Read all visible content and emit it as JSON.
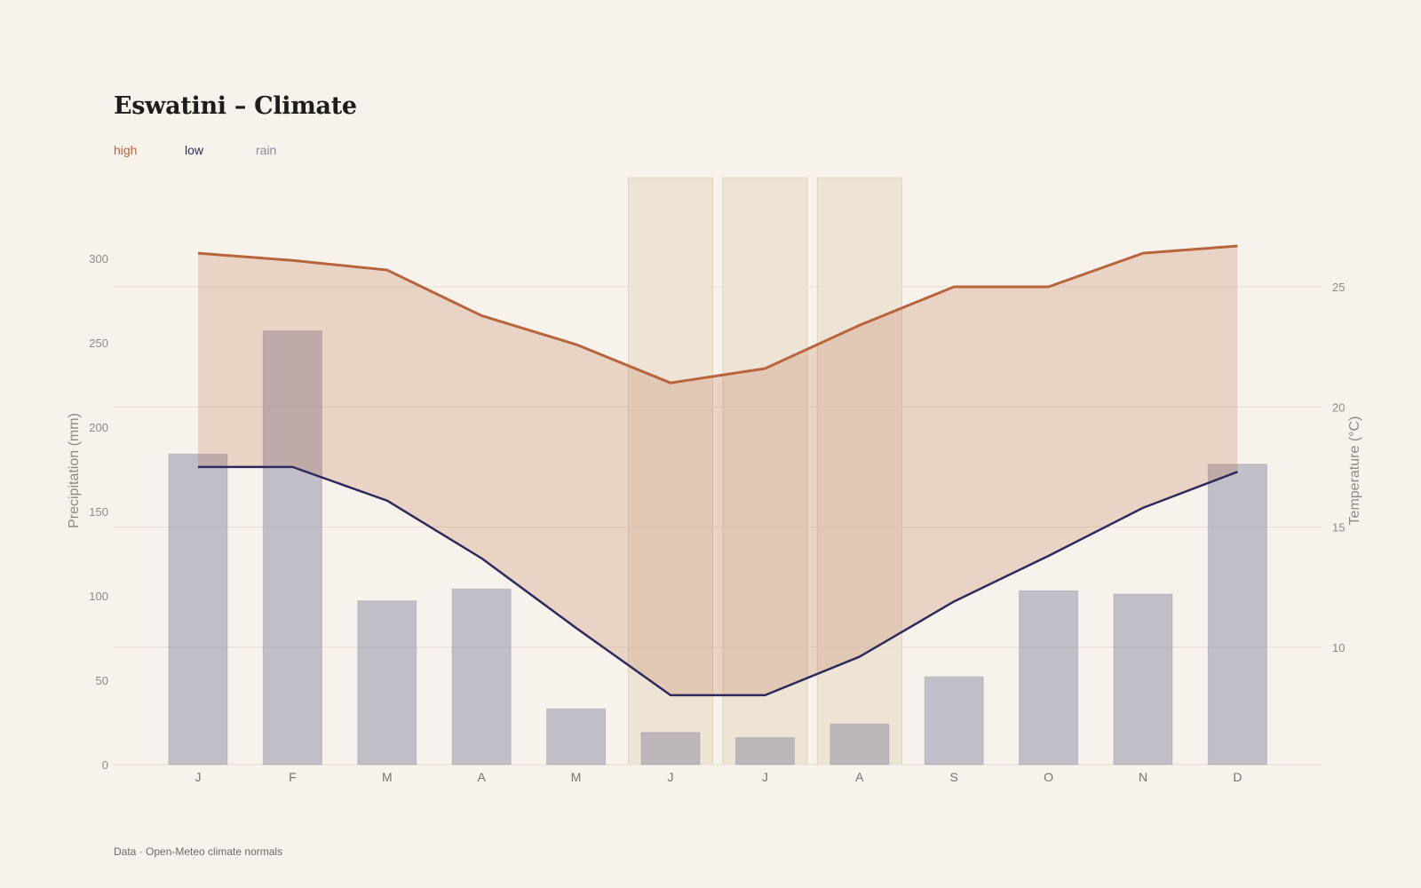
{
  "title": "Eswatini – Climate",
  "footer": "Data · Open-Meteo climate normals",
  "legend": {
    "high": "high",
    "low": "low",
    "rain": "rain"
  },
  "colors": {
    "high": "#b8643d",
    "low": "#2e2a5c",
    "rain": "#8b8aa1",
    "band": "#ddcbaf",
    "background": "#f7f2ec"
  },
  "chart_data": {
    "type": "bar+line",
    "categories": [
      "J",
      "F",
      "M",
      "A",
      "M",
      "J",
      "J",
      "A",
      "S",
      "O",
      "N",
      "D"
    ],
    "precipitation": {
      "name": "rain",
      "unit": "mm",
      "values": [
        184,
        257,
        97,
        104,
        33,
        19,
        16,
        24,
        52,
        103,
        101,
        178
      ]
    },
    "temperature_high": {
      "name": "high",
      "unit": "°C",
      "values": [
        26.4,
        26.1,
        25.7,
        23.8,
        22.6,
        21.0,
        21.6,
        23.4,
        25.0,
        25.0,
        26.4,
        26.7
      ]
    },
    "temperature_low": {
      "name": "low",
      "unit": "°C",
      "values": [
        17.5,
        17.5,
        16.1,
        13.7,
        10.8,
        8.0,
        8.0,
        9.6,
        11.9,
        13.8,
        15.8,
        17.3
      ]
    },
    "highlighted_months": [
      5,
      6,
      7
    ],
    "y_left": {
      "label": "Precipitation (mm)",
      "ticks": [
        0,
        50,
        100,
        150,
        200,
        250,
        300
      ],
      "range": [
        0,
        300
      ]
    },
    "y_right": {
      "label": "Temperature (°C)",
      "ticks": [
        10,
        15,
        20,
        25
      ],
      "range": [
        5,
        30
      ]
    },
    "grid": true
  }
}
